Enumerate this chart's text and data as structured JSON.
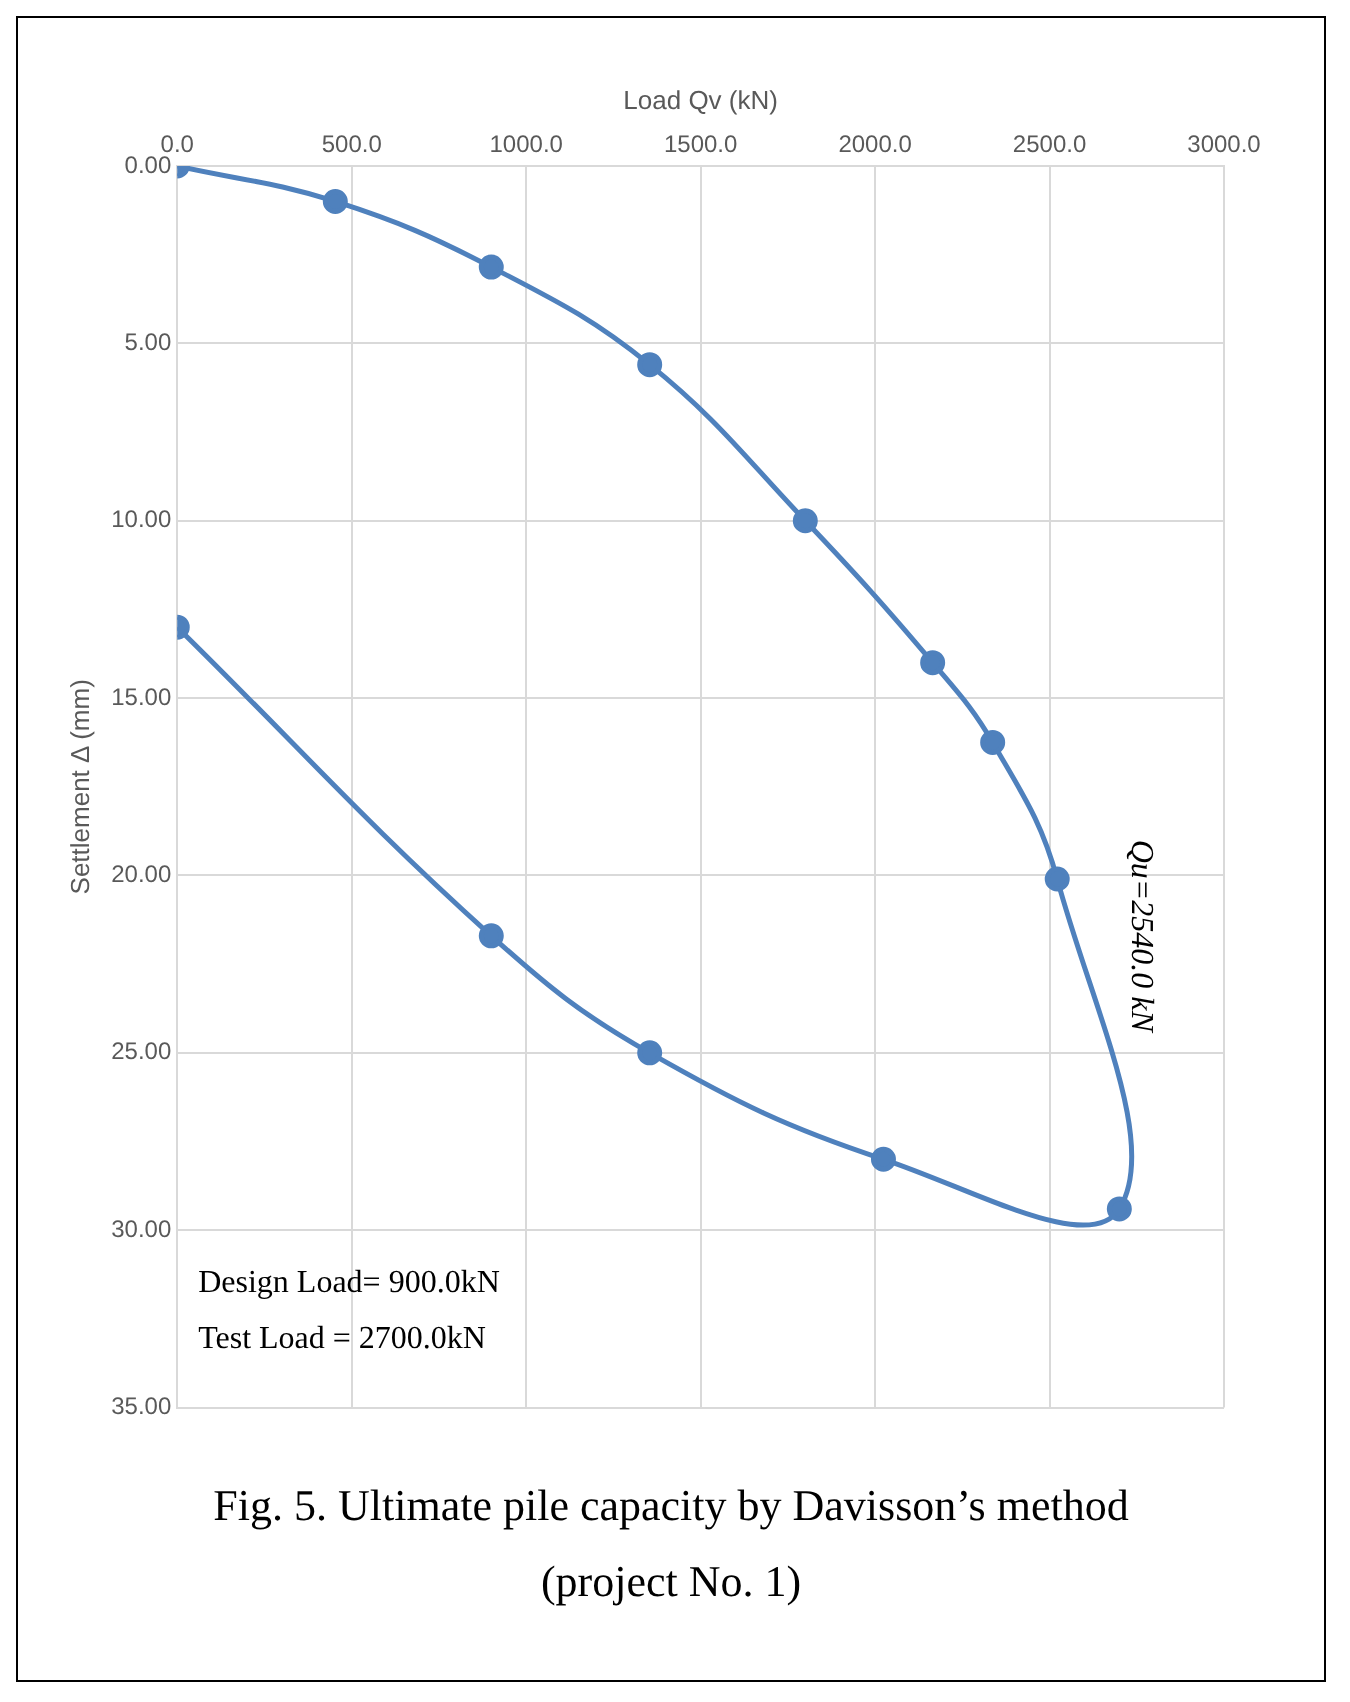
{
  "chart_data": {
    "type": "line",
    "xlabel": "Load Qv (kN)",
    "ylabel": "Settlement Δ (mm)",
    "series": [
      {
        "color": "#4f81bd",
        "x": [
          0,
          453,
          900,
          1354,
          1800,
          2165,
          2337,
          2522,
          2700,
          2024,
          1354,
          900,
          0
        ],
        "values": [
          0,
          1.0,
          2.85,
          5.6,
          10.0,
          14.0,
          16.25,
          20.1,
          29.4,
          28.0,
          25.0,
          21.7,
          13.0
        ]
      }
    ],
    "xlim": [
      0,
      3000
    ],
    "xticks": [
      {
        "value": 0,
        "label": "0.0"
      },
      {
        "value": 500,
        "label": "500.0"
      },
      {
        "value": 1000,
        "label": "1000.0"
      },
      {
        "value": 1500,
        "label": "1500.0"
      },
      {
        "value": 2000,
        "label": "2000.0"
      },
      {
        "value": 2500,
        "label": "2500.0"
      },
      {
        "value": 3000,
        "label": "3000.0"
      }
    ],
    "ylim": [
      35,
      0
    ],
    "yticks": [
      {
        "value": 0,
        "label": "0.00"
      },
      {
        "value": 5,
        "label": "5.00"
      },
      {
        "value": 10,
        "label": "10.00"
      },
      {
        "value": 15,
        "label": "15.00"
      },
      {
        "value": 20,
        "label": "20.00"
      },
      {
        "value": 25,
        "label": "25.00"
      },
      {
        "value": 30,
        "label": "30.00"
      },
      {
        "value": 35,
        "label": "35.00"
      }
    ],
    "grid": true,
    "marker": "circle",
    "line_style": "solid",
    "annotations": [
      "Qu=2540.0 kN",
      "Design Load= 900.0kN",
      "Test Load = 2700.0kN",
      "Fig. 5. Ultimate pile capacity by Davisson’s method (project No. 1)"
    ]
  }
}
